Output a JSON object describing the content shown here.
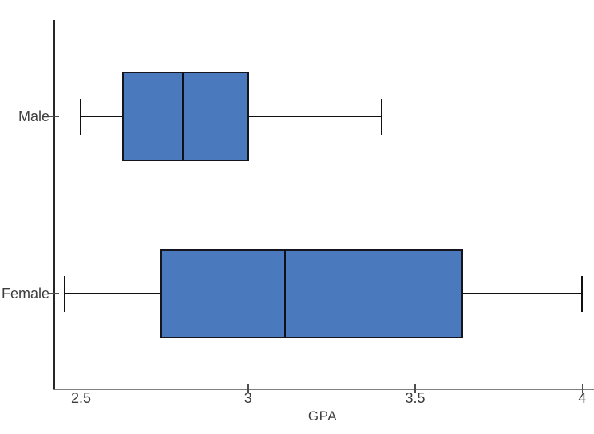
{
  "chart_data": {
    "type": "boxplot",
    "orientation": "horizontal",
    "title": "",
    "xlabel": "GPA",
    "ylabel": "",
    "categories": [
      "Male",
      "Female"
    ],
    "series": [
      {
        "name": "Male",
        "whisker_low": 2.5,
        "q1": 2.625,
        "median": 2.805,
        "q3": 3.0,
        "whisker_high": 3.4
      },
      {
        "name": "Female",
        "whisker_low": 2.45,
        "q1": 2.74,
        "median": 3.11,
        "q3": 3.64,
        "whisker_high": 4.0
      }
    ],
    "xlim": [
      2.42,
      4.035
    ],
    "xticks": [
      {
        "value": 2.5,
        "label": "2.5"
      },
      {
        "value": 3,
        "label": "3"
      },
      {
        "value": 3.5,
        "label": "3.5"
      },
      {
        "value": 4,
        "label": "4"
      }
    ],
    "grid": false,
    "legend": false,
    "colors": {
      "box_fill": "#4a7abd",
      "box_border": "#15151d",
      "median_line": "#10101a",
      "whisker": "#111111",
      "x_axis_line": "#7f7f7f",
      "y_axis_line": "#262626",
      "tick": "#4d4d4d",
      "text": "#3d3d3d",
      "background": "#ffffff"
    }
  }
}
